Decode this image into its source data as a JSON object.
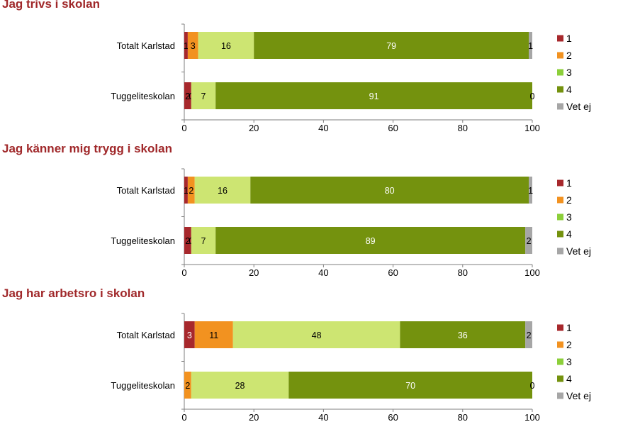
{
  "colors": {
    "1": "#a7282c",
    "2": "#f29220",
    "3": "#cde572",
    "4": "#74920e",
    "Vet ej": "#a6a6a6",
    "title": "#a0282a"
  },
  "legend_icon_colors": [
    "#a7282c",
    "#f29220",
    "#8ccf3a",
    "#74920e",
    "#a6a6a6"
  ],
  "chart_data": [
    {
      "type": "bar",
      "orientation": "horizontal",
      "stacked": true,
      "title": "Jag trivs i skolan",
      "categories": [
        "Totalt Karlstad",
        "Tuggeliteskolan"
      ],
      "series": [
        {
          "name": "1",
          "values": [
            1,
            2
          ],
          "labels": [
            "1",
            "2"
          ]
        },
        {
          "name": "2",
          "values": [
            3,
            0
          ],
          "labels": [
            "3",
            "0"
          ]
        },
        {
          "name": "3",
          "values": [
            16,
            7
          ],
          "labels": [
            "16",
            "7"
          ]
        },
        {
          "name": "4",
          "values": [
            79,
            91
          ],
          "labels": [
            "79",
            "91"
          ]
        },
        {
          "name": "Vet ej",
          "values": [
            1,
            0
          ],
          "labels": [
            "1",
            "0"
          ]
        }
      ],
      "xlim": [
        0,
        100
      ],
      "xticks": [
        "0",
        "20",
        "40",
        "60",
        "80",
        "100"
      ],
      "legend_position": "right",
      "grid": false
    },
    {
      "type": "bar",
      "orientation": "horizontal",
      "stacked": true,
      "title": "Jag känner mig trygg i skolan",
      "categories": [
        "Totalt Karlstad",
        "Tuggeliteskolan"
      ],
      "series": [
        {
          "name": "1",
          "values": [
            1,
            2
          ],
          "labels": [
            "1",
            "2"
          ]
        },
        {
          "name": "2",
          "values": [
            2,
            0
          ],
          "labels": [
            "2",
            "0"
          ]
        },
        {
          "name": "3",
          "values": [
            16,
            7
          ],
          "labels": [
            "16",
            "7"
          ]
        },
        {
          "name": "4",
          "values": [
            80,
            89
          ],
          "labels": [
            "80",
            "89"
          ]
        },
        {
          "name": "Vet ej",
          "values": [
            1,
            2
          ],
          "labels": [
            "1",
            "2"
          ]
        }
      ],
      "xlim": [
        0,
        100
      ],
      "xticks": [
        "0",
        "20",
        "40",
        "60",
        "80",
        "100"
      ],
      "legend_position": "right",
      "grid": false
    },
    {
      "type": "bar",
      "orientation": "horizontal",
      "stacked": true,
      "title": "Jag har arbetsro i skolan",
      "categories": [
        "Totalt Karlstad",
        "Tuggeliteskolan"
      ],
      "series": [
        {
          "name": "1",
          "values": [
            3,
            0
          ],
          "labels": [
            "3",
            ""
          ]
        },
        {
          "name": "2",
          "values": [
            11,
            2
          ],
          "labels": [
            "11",
            "2"
          ]
        },
        {
          "name": "3",
          "values": [
            48,
            28
          ],
          "labels": [
            "48",
            "28"
          ]
        },
        {
          "name": "4",
          "values": [
            36,
            70
          ],
          "labels": [
            "36",
            "70"
          ]
        },
        {
          "name": "Vet ej",
          "values": [
            2,
            0
          ],
          "labels": [
            "2",
            "0"
          ]
        }
      ],
      "xlim": [
        0,
        100
      ],
      "xticks": [
        "0",
        "20",
        "40",
        "60",
        "80",
        "100"
      ],
      "legend_position": "right",
      "grid": false
    }
  ]
}
